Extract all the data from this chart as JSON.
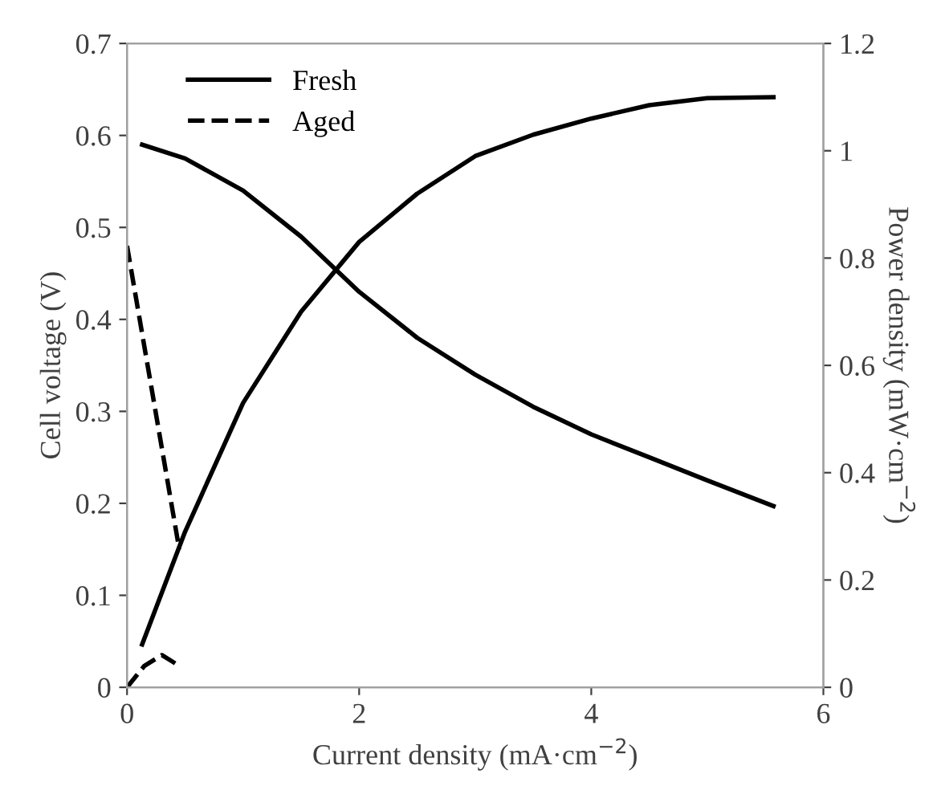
{
  "chart_data": {
    "type": "line",
    "xlabel": "Current density (mA·cm$^{−2}$)",
    "ylabel": "Cell voltage (V)",
    "y2label": "Power density (mW·cm$^{−2}$)",
    "xlim": [
      0,
      6
    ],
    "xticks": [
      0,
      2,
      4,
      6
    ],
    "ylim": [
      0,
      0.7
    ],
    "yticks": [
      0,
      0.1,
      0.2,
      0.3,
      0.4,
      0.5,
      0.6,
      0.7
    ],
    "y2lim": [
      0,
      1.2
    ],
    "y2ticks": [
      0,
      0.2,
      0.4,
      0.6,
      0.8,
      1,
      1.2
    ],
    "grid": false,
    "legend": "top left",
    "marker": "none",
    "series": [
      {
        "name": "Fresh",
        "color": "#000000",
        "line_style": "solid",
        "x": [
          0.13,
          0.5,
          1,
          1.5,
          2,
          2.5,
          3,
          3.5,
          4,
          4.5,
          5,
          5.57
        ],
        "values": [
          0.59,
          0.575,
          0.54,
          0.49,
          0.43,
          0.38,
          0.34,
          0.305,
          0.275,
          0.25,
          0.225,
          0.197
        ]
      },
      {
        "color": "#000000",
        "line_style": "solid",
        "axis": "y2",
        "x": [
          0.13,
          0.5,
          1,
          1.5,
          2,
          2.5,
          3,
          3.5,
          4,
          4.5,
          5,
          5.57
        ],
        "values": [
          0.08,
          0.29,
          0.53,
          0.7,
          0.83,
          0.92,
          0.99,
          1.03,
          1.06,
          1.085,
          1.098,
          1.1
        ]
      },
      {
        "name": "Aged",
        "color": "#000000",
        "line_style": "dashed",
        "x": [
          0,
          0.15,
          0.3,
          0.45
        ],
        "values": [
          0.48,
          0.37,
          0.26,
          0.15
        ]
      },
      {
        "color": "#000000",
        "line_style": "dashed",
        "axis": "y2",
        "x": [
          0,
          0.15,
          0.3,
          0.45
        ],
        "values": [
          0,
          0.04,
          0.06,
          0.04
        ]
      }
    ]
  }
}
